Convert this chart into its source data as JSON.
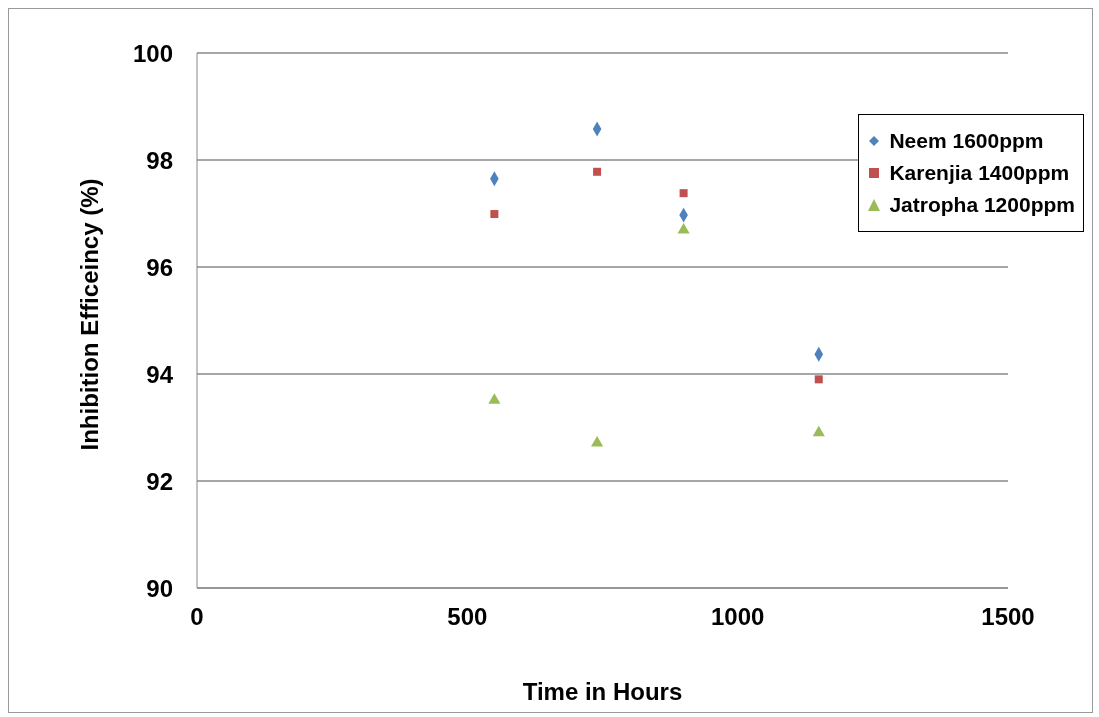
{
  "chart_data": {
    "type": "scatter",
    "xlabel": "Time in Hours",
    "ylabel": "Inhibition Efficeincy (%)",
    "xlim": [
      0,
      1500
    ],
    "xticks": [
      0,
      500,
      1000,
      1500
    ],
    "ylim": [
      90,
      100
    ],
    "yticks": [
      90,
      92,
      94,
      96,
      98,
      100
    ],
    "grid": "y",
    "legend": "top right",
    "series": [
      {
        "name": "Neem 1600ppm",
        "color": "#4f81bd",
        "marker": "diamond",
        "x": [
          550,
          740,
          900,
          1150
        ],
        "values": [
          97.65,
          98.58,
          96.97,
          94.37
        ]
      },
      {
        "name": "Karenjia 1400ppm",
        "color": "#c0504d",
        "marker": "square",
        "x": [
          550,
          740,
          900,
          1150
        ],
        "values": [
          96.99,
          97.78,
          97.38,
          93.9
        ]
      },
      {
        "name": "Jatropha 1200ppm",
        "color": "#9bbb59",
        "marker": "triangle",
        "x": [
          550,
          740,
          900,
          1150
        ],
        "values": [
          93.51,
          92.71,
          96.69,
          92.9
        ]
      }
    ]
  }
}
